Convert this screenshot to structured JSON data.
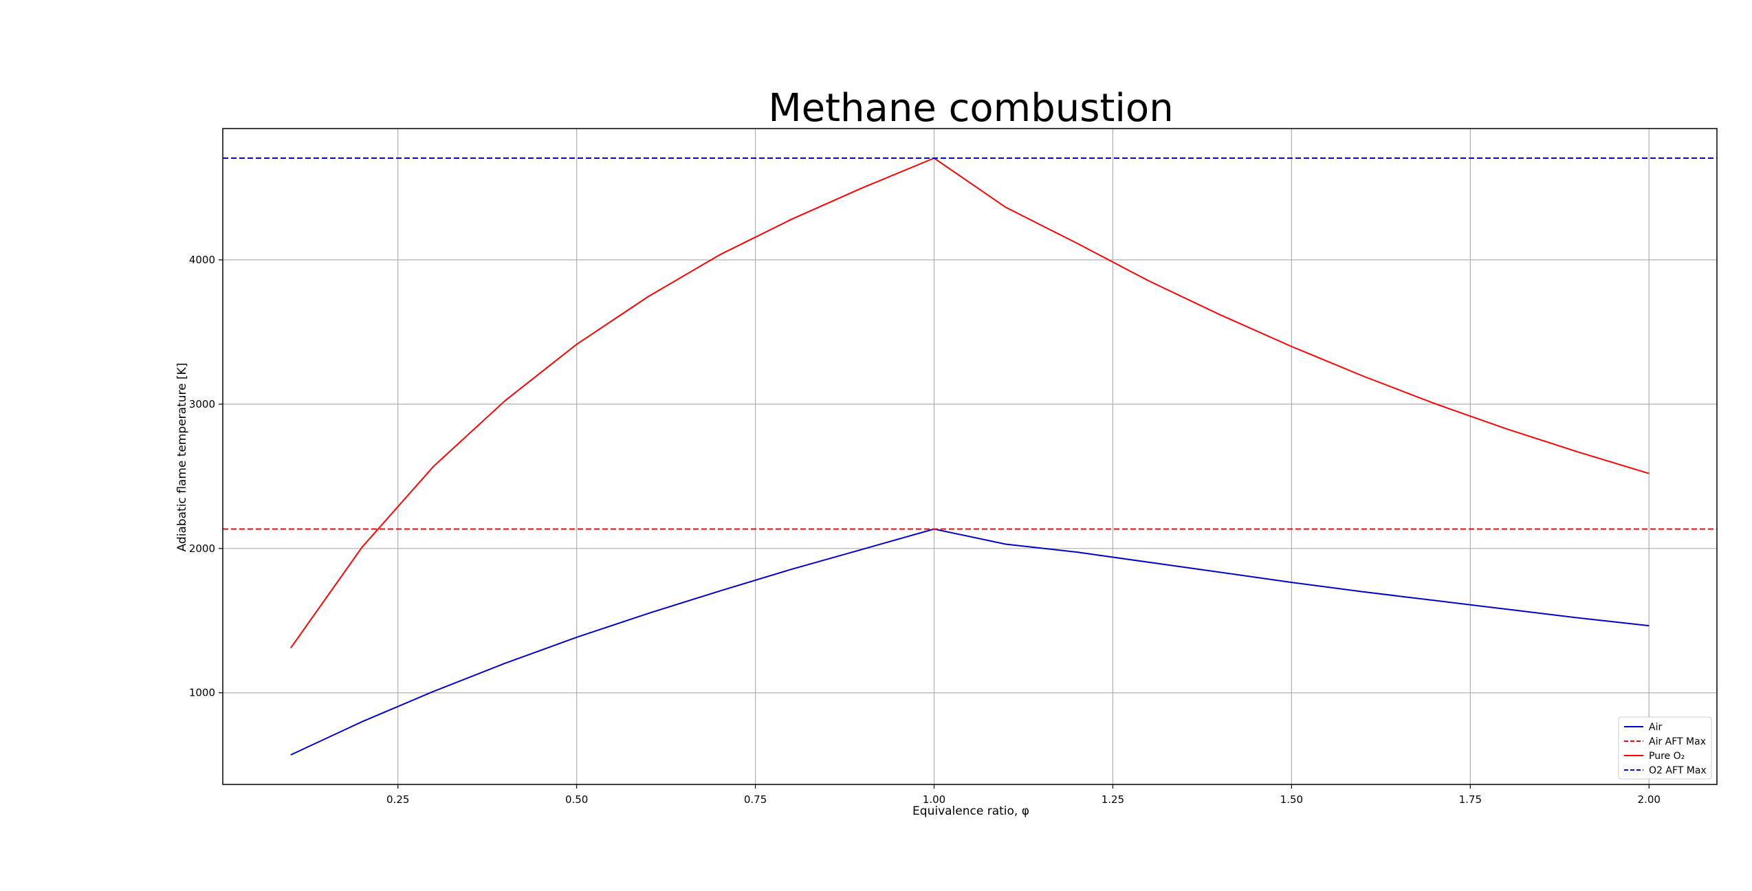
{
  "chart_data": {
    "type": "line",
    "title": "Methane combustion",
    "xlabel": "Equivalence ratio, φ",
    "ylabel": "Adiabatic flame temperature [K]",
    "xlim": [
      0.005,
      2.095
    ],
    "ylim": [
      365,
      4910
    ],
    "xticks": [
      0.25,
      0.5,
      0.75,
      1.0,
      1.25,
      1.5,
      1.75,
      2.0
    ],
    "xtick_labels": [
      "0.25",
      "0.50",
      "0.75",
      "1.00",
      "1.25",
      "1.50",
      "1.75",
      "2.00"
    ],
    "yticks": [
      1000,
      2000,
      3000,
      4000
    ],
    "ytick_labels": [
      "1000",
      "2000",
      "3000",
      "4000"
    ],
    "grid": true,
    "legend_position": "lower-right",
    "x": [
      0.1,
      0.2,
      0.3,
      0.4,
      0.5,
      0.6,
      0.7,
      0.8,
      0.9,
      1.0,
      1.1,
      1.2,
      1.3,
      1.4,
      1.5,
      1.6,
      1.7,
      1.8,
      1.9,
      2.0
    ],
    "series": [
      {
        "name": "Air",
        "color": "#0000cc",
        "style": "solid",
        "values": [
          570,
          800,
          1010,
          1205,
          1385,
          1550,
          1705,
          1855,
          1995,
          2135,
          2030,
          1975,
          1905,
          1835,
          1765,
          1700,
          1640,
          1580,
          1520,
          1465
        ]
      },
      {
        "name": "Air AFT Max",
        "color": "#ff0000",
        "style": "dashed",
        "hline": 2135
      },
      {
        "name": "Pure O₂",
        "color": "#ff0000",
        "style": "solid",
        "values": [
          1310,
          2010,
          2570,
          3025,
          3415,
          3745,
          4035,
          4280,
          4500,
          4705,
          4365,
          4115,
          3855,
          3620,
          3400,
          3195,
          3005,
          2830,
          2670,
          2520
        ]
      },
      {
        "name": "O2 AFT Max",
        "color": "#0000ff",
        "style": "dashed",
        "hline": 4705
      }
    ]
  }
}
